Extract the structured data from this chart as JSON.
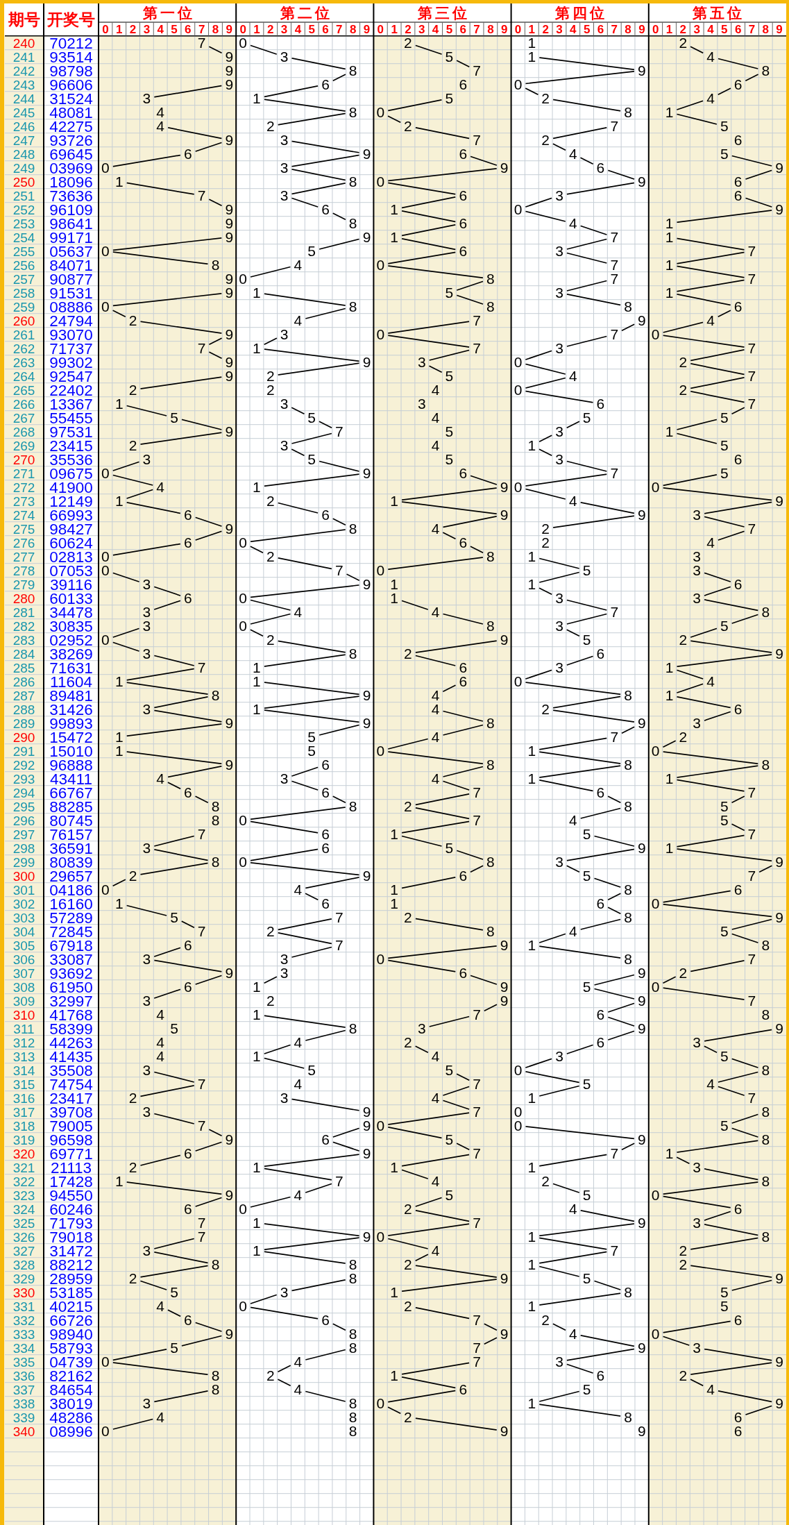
{
  "chart_data": [
    {
      "type": "line",
      "title": "第一位",
      "ylabel": "期号",
      "orientation": "horizontal",
      "xlim": [
        -0.5,
        9.5
      ],
      "xticks": [
        0,
        1,
        2,
        3,
        4,
        5,
        6,
        7,
        8,
        9
      ],
      "grid": true,
      "data_labels": true,
      "categories": [
        "240",
        "241",
        "242",
        "243",
        "244",
        "245",
        "246",
        "247",
        "248",
        "249",
        "250",
        "251",
        "252",
        "253",
        "254",
        "255",
        "256",
        "257",
        "258",
        "259",
        "260",
        "261",
        "262",
        "263",
        "264",
        "265",
        "266",
        "267",
        "268",
        "269",
        "270",
        "271",
        "272",
        "273",
        "274",
        "275",
        "276",
        "277",
        "278",
        "279",
        "280",
        "281",
        "282",
        "283",
        "284",
        "285",
        "286",
        "287",
        "288",
        "289",
        "290",
        "291",
        "292",
        "293",
        "294",
        "295",
        "296",
        "297",
        "298",
        "299",
        "300",
        "301",
        "302",
        "303",
        "304",
        "305",
        "306",
        "307",
        "308",
        "309",
        "310",
        "311",
        "312",
        "313",
        "314",
        "315",
        "316",
        "317",
        "318",
        "319",
        "320",
        "321",
        "322",
        "323",
        "324",
        "325",
        "326",
        "327",
        "328",
        "329",
        "330",
        "331",
        "332",
        "333",
        "334",
        "335",
        "336",
        "337",
        "338",
        "339",
        "340"
      ],
      "series": [
        {
          "color": "#000000",
          "values": [
            7,
            9,
            9,
            9,
            3,
            4,
            4,
            9,
            6,
            0,
            1,
            7,
            9,
            9,
            9,
            0,
            8,
            9,
            9,
            0,
            2,
            9,
            7,
            9,
            9,
            2,
            1,
            5,
            9,
            2,
            3,
            0,
            4,
            1,
            6,
            9,
            6,
            0,
            0,
            3,
            6,
            3,
            3,
            0,
            3,
            7,
            1,
            8,
            3,
            9,
            1,
            1,
            9,
            4,
            6,
            8,
            8,
            7,
            3,
            8,
            2,
            0,
            1,
            5,
            7,
            6,
            3,
            9,
            6,
            3,
            4,
            5,
            4,
            4,
            3,
            7,
            2,
            3,
            7,
            9,
            6,
            2,
            1,
            9,
            6,
            7,
            7,
            3,
            8,
            2,
            5,
            4,
            6,
            9,
            5,
            0,
            8,
            8,
            3,
            4,
            0
          ]
        }
      ]
    },
    {
      "type": "other",
      "title": "开奖号",
      "annotations": [
        "70212",
        "93514",
        "98798",
        "96606",
        "31524",
        "48081",
        "42275",
        "93726",
        "69645",
        "03969",
        "18096",
        "73636",
        "96109",
        "98641",
        "99171",
        "05637",
        "84071",
        "90877",
        "91531",
        "08886",
        "24794",
        "93070",
        "71737",
        "99302",
        "92547",
        "22402",
        "13367",
        "55455",
        "97531",
        "23415",
        "35536",
        "09675",
        "41900",
        "12149",
        "66993",
        "98427",
        "60624",
        "02813",
        "07053",
        "39116",
        "60133",
        "34478",
        "30835",
        "02952",
        "38269",
        "71631",
        "11604",
        "89481",
        "31426",
        "99893",
        "15472",
        "15010",
        "96888",
        "43411",
        "66767",
        "88285",
        "80745",
        "76157",
        "36591",
        "80839",
        "29657",
        "04186",
        "16160",
        "57289",
        "72845",
        "67918",
        "33087",
        "93692",
        "61950",
        "32997",
        "41768",
        "58399",
        "44263",
        "41435",
        "35508",
        "74754",
        "23417",
        "39708",
        "79005",
        "96598",
        "69771",
        "21113",
        "17428",
        "94550",
        "60246",
        "71793",
        "79018",
        "31472",
        "88212",
        "28959",
        "53185",
        "40215",
        "66726",
        "98940",
        "58793",
        "04739",
        "82162",
        "84654",
        "38019",
        "48286",
        "08996"
      ]
    },
    {
      "type": "line",
      "title": "第二位",
      "orientation": "horizontal",
      "xlim": [
        -0.5,
        9.5
      ],
      "xticks": [
        0,
        1,
        2,
        3,
        4,
        5,
        6,
        7,
        8,
        9
      ],
      "grid": true,
      "data_labels": true,
      "tick_labels": "x",
      "categories": [
        "240",
        "241",
        "242",
        "243",
        "244",
        "245",
        "246",
        "247",
        "248",
        "249",
        "250",
        "251",
        "252",
        "253",
        "254",
        "255",
        "256",
        "257",
        "258",
        "259",
        "260",
        "261",
        "262",
        "263",
        "264",
        "265",
        "266",
        "267",
        "268",
        "269",
        "270",
        "271",
        "272",
        "273",
        "274",
        "275",
        "276",
        "277",
        "278",
        "279",
        "280",
        "281",
        "282",
        "283",
        "284",
        "285",
        "286",
        "287",
        "288",
        "289",
        "290",
        "291",
        "292",
        "293",
        "294",
        "295",
        "296",
        "297",
        "298",
        "299",
        "300",
        "301",
        "302",
        "303",
        "304",
        "305",
        "306",
        "307",
        "308",
        "309",
        "310",
        "311",
        "312",
        "313",
        "314",
        "315",
        "316",
        "317",
        "318",
        "319",
        "320",
        "321",
        "322",
        "323",
        "324",
        "325",
        "326",
        "327",
        "328",
        "329",
        "330",
        "331",
        "332",
        "333",
        "334",
        "335",
        "336",
        "337",
        "338",
        "339",
        "340"
      ],
      "series": [
        {
          "color": "#000000",
          "values": [
            0,
            3,
            8,
            6,
            1,
            8,
            2,
            3,
            9,
            3,
            8,
            3,
            6,
            8,
            9,
            5,
            4,
            0,
            1,
            8,
            4,
            3,
            1,
            9,
            2,
            2,
            3,
            5,
            7,
            3,
            5,
            9,
            1,
            2,
            6,
            8,
            0,
            2,
            7,
            9,
            0,
            4,
            0,
            2,
            8,
            1,
            1,
            9,
            1,
            9,
            5,
            5,
            6,
            3,
            6,
            8,
            0,
            6,
            6,
            0,
            9,
            4,
            6,
            7,
            2,
            7,
            3,
            3,
            1,
            2,
            1,
            8,
            4,
            1,
            5,
            4,
            3,
            9,
            9,
            6,
            9,
            1,
            7,
            4,
            0,
            1,
            9,
            1,
            8,
            8,
            3,
            0,
            6,
            8,
            8,
            4,
            2,
            4,
            8,
            8,
            8
          ]
        }
      ]
    },
    {
      "type": "line",
      "title": "第三位",
      "orientation": "horizontal",
      "xlim": [
        -0.5,
        9.5
      ],
      "xticks": [
        0,
        1,
        2,
        3,
        4,
        5,
        6,
        7,
        8,
        9
      ],
      "grid": true,
      "data_labels": true,
      "tick_labels": "x",
      "categories": [
        "240",
        "241",
        "242",
        "243",
        "244",
        "245",
        "246",
        "247",
        "248",
        "249",
        "250",
        "251",
        "252",
        "253",
        "254",
        "255",
        "256",
        "257",
        "258",
        "259",
        "260",
        "261",
        "262",
        "263",
        "264",
        "265",
        "266",
        "267",
        "268",
        "269",
        "270",
        "271",
        "272",
        "273",
        "274",
        "275",
        "276",
        "277",
        "278",
        "279",
        "280",
        "281",
        "282",
        "283",
        "284",
        "285",
        "286",
        "287",
        "288",
        "289",
        "290",
        "291",
        "292",
        "293",
        "294",
        "295",
        "296",
        "297",
        "298",
        "299",
        "300",
        "301",
        "302",
        "303",
        "304",
        "305",
        "306",
        "307",
        "308",
        "309",
        "310",
        "311",
        "312",
        "313",
        "314",
        "315",
        "316",
        "317",
        "318",
        "319",
        "320",
        "321",
        "322",
        "323",
        "324",
        "325",
        "326",
        "327",
        "328",
        "329",
        "330",
        "331",
        "332",
        "333",
        "334",
        "335",
        "336",
        "337",
        "338",
        "339",
        "340"
      ],
      "series": [
        {
          "color": "#000000",
          "values": [
            2,
            5,
            7,
            6,
            5,
            0,
            2,
            7,
            6,
            9,
            0,
            6,
            1,
            6,
            1,
            6,
            0,
            8,
            5,
            8,
            7,
            0,
            7,
            3,
            5,
            4,
            3,
            4,
            5,
            4,
            5,
            6,
            9,
            1,
            9,
            4,
            6,
            8,
            0,
            1,
            1,
            4,
            8,
            9,
            2,
            6,
            6,
            4,
            4,
            8,
            4,
            0,
            8,
            4,
            7,
            2,
            7,
            1,
            5,
            8,
            6,
            1,
            1,
            2,
            8,
            9,
            0,
            6,
            9,
            9,
            7,
            3,
            2,
            4,
            5,
            7,
            4,
            7,
            0,
            5,
            7,
            1,
            4,
            5,
            2,
            7,
            0,
            4,
            2,
            9,
            1,
            2,
            7,
            9,
            7,
            7,
            1,
            6,
            0,
            2,
            9
          ]
        }
      ]
    },
    {
      "type": "line",
      "title": "第四位",
      "orientation": "horizontal",
      "xlim": [
        -0.5,
        9.5
      ],
      "xticks": [
        0,
        1,
        2,
        3,
        4,
        5,
        6,
        7,
        8,
        9
      ],
      "grid": true,
      "data_labels": true,
      "tick_labels": "x",
      "categories": [
        "240",
        "241",
        "242",
        "243",
        "244",
        "245",
        "246",
        "247",
        "248",
        "249",
        "250",
        "251",
        "252",
        "253",
        "254",
        "255",
        "256",
        "257",
        "258",
        "259",
        "260",
        "261",
        "262",
        "263",
        "264",
        "265",
        "266",
        "267",
        "268",
        "269",
        "270",
        "271",
        "272",
        "273",
        "274",
        "275",
        "276",
        "277",
        "278",
        "279",
        "280",
        "281",
        "282",
        "283",
        "284",
        "285",
        "286",
        "287",
        "288",
        "289",
        "290",
        "291",
        "292",
        "293",
        "294",
        "295",
        "296",
        "297",
        "298",
        "299",
        "300",
        "301",
        "302",
        "303",
        "304",
        "305",
        "306",
        "307",
        "308",
        "309",
        "310",
        "311",
        "312",
        "313",
        "314",
        "315",
        "316",
        "317",
        "318",
        "319",
        "320",
        "321",
        "322",
        "323",
        "324",
        "325",
        "326",
        "327",
        "328",
        "329",
        "330",
        "331",
        "332",
        "333",
        "334",
        "335",
        "336",
        "337",
        "338",
        "339",
        "340"
      ],
      "series": [
        {
          "color": "#000000",
          "values": [
            1,
            1,
            9,
            0,
            2,
            8,
            7,
            2,
            4,
            6,
            9,
            3,
            0,
            4,
            7,
            3,
            7,
            7,
            3,
            8,
            9,
            7,
            3,
            0,
            4,
            0,
            6,
            5,
            3,
            1,
            3,
            7,
            0,
            4,
            9,
            2,
            2,
            1,
            5,
            1,
            3,
            7,
            3,
            5,
            6,
            3,
            0,
            8,
            2,
            9,
            7,
            1,
            8,
            1,
            6,
            8,
            4,
            5,
            9,
            3,
            5,
            8,
            6,
            8,
            4,
            1,
            8,
            9,
            5,
            9,
            6,
            9,
            6,
            3,
            0,
            5,
            1,
            0,
            0,
            9,
            7,
            1,
            2,
            5,
            4,
            9,
            1,
            7,
            1,
            5,
            8,
            1,
            2,
            4,
            9,
            3,
            6,
            5,
            1,
            8,
            9
          ]
        }
      ]
    },
    {
      "type": "line",
      "title": "第五位",
      "orientation": "horizontal",
      "xlim": [
        -0.5,
        9.5
      ],
      "xticks": [
        0,
        1,
        2,
        3,
        4,
        5,
        6,
        7,
        8,
        9
      ],
      "grid": true,
      "data_labels": true,
      "tick_labels": "x",
      "categories": [
        "240",
        "241",
        "242",
        "243",
        "244",
        "245",
        "246",
        "247",
        "248",
        "249",
        "250",
        "251",
        "252",
        "253",
        "254",
        "255",
        "256",
        "257",
        "258",
        "259",
        "260",
        "261",
        "262",
        "263",
        "264",
        "265",
        "266",
        "267",
        "268",
        "269",
        "270",
        "271",
        "272",
        "273",
        "274",
        "275",
        "276",
        "277",
        "278",
        "279",
        "280",
        "281",
        "282",
        "283",
        "284",
        "285",
        "286",
        "287",
        "288",
        "289",
        "290",
        "291",
        "292",
        "293",
        "294",
        "295",
        "296",
        "297",
        "298",
        "299",
        "300",
        "301",
        "302",
        "303",
        "304",
        "305",
        "306",
        "307",
        "308",
        "309",
        "310",
        "311",
        "312",
        "313",
        "314",
        "315",
        "316",
        "317",
        "318",
        "319",
        "320",
        "321",
        "322",
        "323",
        "324",
        "325",
        "326",
        "327",
        "328",
        "329",
        "330",
        "331",
        "332",
        "333",
        "334",
        "335",
        "336",
        "337",
        "338",
        "339",
        "340"
      ],
      "series": [
        {
          "color": "#000000",
          "values": [
            2,
            4,
            8,
            6,
            4,
            1,
            5,
            6,
            5,
            9,
            6,
            6,
            9,
            1,
            1,
            7,
            1,
            7,
            1,
            6,
            4,
            0,
            7,
            2,
            7,
            2,
            7,
            5,
            1,
            5,
            6,
            5,
            0,
            9,
            3,
            7,
            4,
            3,
            3,
            6,
            3,
            8,
            5,
            2,
            9,
            1,
            4,
            1,
            6,
            3,
            2,
            0,
            8,
            1,
            7,
            5,
            5,
            7,
            1,
            9,
            7,
            6,
            0,
            9,
            5,
            8,
            7,
            2,
            0,
            7,
            8,
            9,
            3,
            5,
            8,
            4,
            7,
            8,
            5,
            8,
            1,
            3,
            8,
            0,
            6,
            3,
            8,
            2,
            2,
            9,
            5,
            5,
            6,
            0,
            3,
            9,
            2,
            4,
            9,
            6,
            6
          ]
        }
      ]
    }
  ]
}
